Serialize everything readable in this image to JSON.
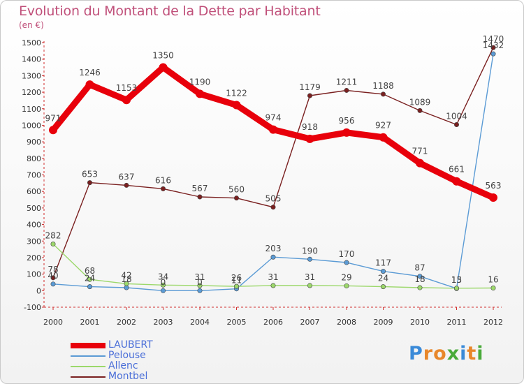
{
  "title": "Evolution du Montant de la Dette par Habitant",
  "subtitle": "(en €)",
  "logo": {
    "letters": [
      "P",
      "r",
      "o",
      "x",
      "i",
      "t",
      "i"
    ],
    "colors": [
      "#3a8ad8",
      "#e8872a",
      "#e8872a",
      "#4aaa3a",
      "#3a8ad8",
      "#e8872a",
      "#4aaa3a"
    ]
  },
  "chart_data": {
    "type": "line",
    "categories": [
      "2000",
      "2001",
      "2002",
      "2003",
      "2004",
      "2005",
      "2006",
      "2007",
      "2008",
      "2009",
      "2010",
      "2011",
      "2012"
    ],
    "ylim": [
      -100,
      1500
    ],
    "yticks": [
      "-100",
      "0",
      "100",
      "200",
      "300",
      "400",
      "500",
      "600",
      "700",
      "800",
      "900",
      "1000",
      "1100",
      "1200",
      "1300",
      "1400",
      "1500"
    ],
    "grid": false,
    "legend_position": "bottom-left",
    "series": [
      {
        "name": "Montbel",
        "color": "#7a2020",
        "values": [
          78,
          653,
          637,
          616,
          567,
          560,
          505,
          1179,
          1211,
          1188,
          1089,
          1004,
          1470
        ],
        "labels": [
          "78",
          "653",
          "637",
          "616",
          "567",
          "560",
          "505",
          "1179",
          "1211",
          "1188",
          "1089",
          "1004",
          "1470"
        ]
      },
      {
        "name": "Pelouse",
        "color": "#5b9bd5",
        "values": [
          40,
          24,
          18,
          0,
          0,
          11,
          203,
          190,
          170,
          117,
          87,
          13,
          1432
        ],
        "labels": [
          "40",
          "24",
          "18",
          "0",
          "0",
          "11",
          "203",
          "190",
          "170",
          "117",
          "87",
          "13",
          "1432"
        ]
      },
      {
        "name": "Allenc",
        "color": "#9cd86b",
        "values": [
          282,
          68,
          42,
          34,
          31,
          26,
          31,
          31,
          29,
          24,
          18,
          15,
          16
        ],
        "labels": [
          "282",
          "68",
          "42",
          "34",
          "31",
          "26",
          "31",
          "31",
          "29",
          "24",
          "18",
          "15",
          "16"
        ]
      },
      {
        "name": "LAUBERT",
        "color": "#e8000b",
        "values": [
          971,
          1246,
          1153,
          1350,
          1190,
          1122,
          974,
          918,
          956,
          927,
          771,
          661,
          563
        ],
        "labels": [
          "971",
          "1246",
          "1153",
          "1350",
          "1190",
          "1122",
          "974",
          "918",
          "956",
          "927",
          "771",
          "661",
          "563"
        ]
      }
    ],
    "legend": [
      {
        "name": "LAUBERT",
        "color": "#e8000b"
      },
      {
        "name": "Pelouse",
        "color": "#5b9bd5"
      },
      {
        "name": "Allenc",
        "color": "#9cd86b"
      },
      {
        "name": "Montbel",
        "color": "#7a2020"
      }
    ]
  }
}
